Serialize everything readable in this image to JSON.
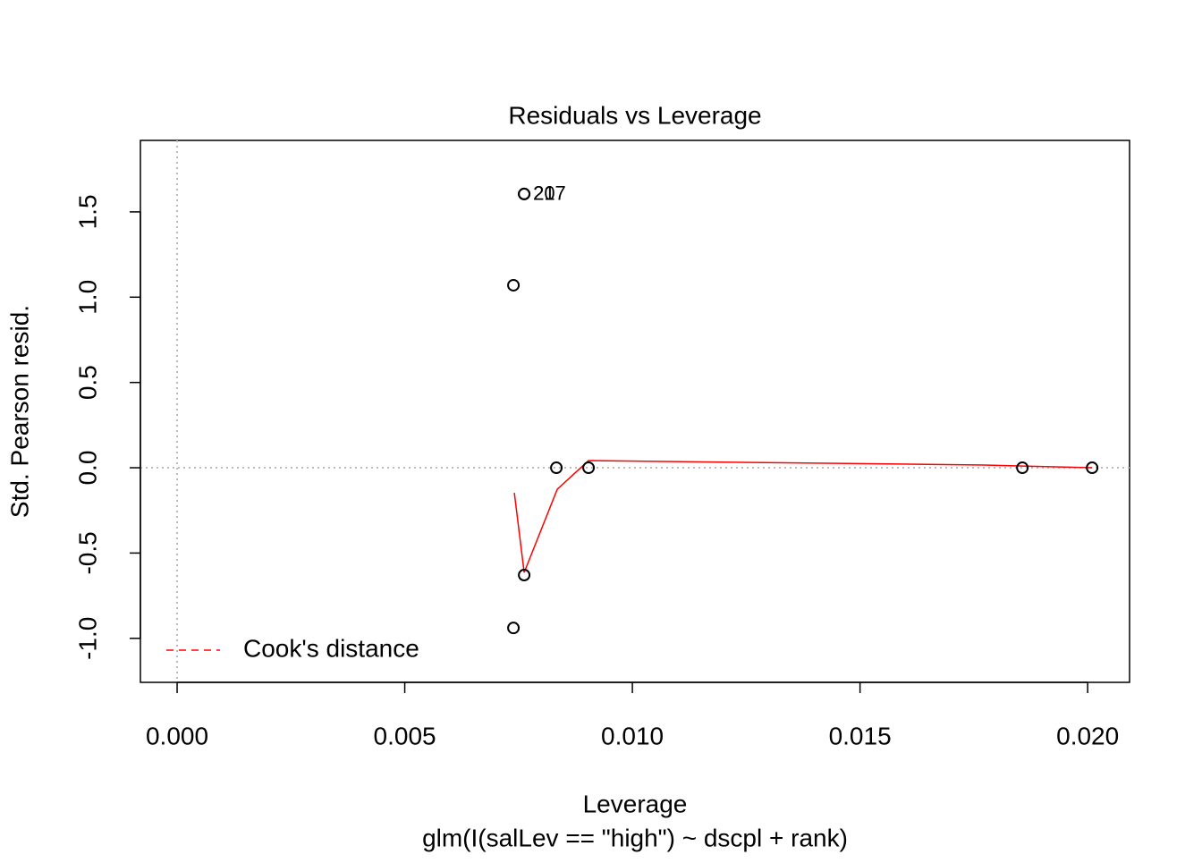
{
  "chart_data": {
    "type": "scatter",
    "title": "Residuals vs Leverage",
    "x_label": "Leverage",
    "subtitle": "glm(I(salLev == \"high\") ~ dscpl + rank)",
    "y_label": "Std. Pearson resid.",
    "x": [
      0.007623,
      0.007623,
      0.007387,
      0.00833,
      0.009037,
      0.007623,
      0.007387,
      0.018566,
      0.020098
    ],
    "y": [
      1.605,
      1.605,
      1.07,
      0,
      0,
      -0.629,
      -0.939,
      0,
      0
    ],
    "point_labels": [
      "207",
      "21",
      null,
      null,
      null,
      null,
      null,
      null,
      null
    ],
    "smooth": {
      "color": "#ff0000",
      "x": [
        0.007407,
        0.007623,
        0.00835,
        0.009037,
        0.01772,
        0.0201
      ],
      "y": [
        -0.147,
        -0.614,
        -0.126,
        0.042,
        0.016,
        0
      ]
    },
    "legend": {
      "label": "Cook's distance",
      "color": "#ff0000",
      "position": "bottomleft"
    },
    "hline": 0,
    "vline": 0,
    "xlim": [
      -0.000806,
      0.02092
    ],
    "ylim": [
      -1.258,
      1.919
    ],
    "xticks": [
      {
        "value": 0,
        "label": "0.000"
      },
      0.005,
      {
        "value": 0.01,
        "label": "0.010"
      },
      0.015,
      {
        "value": 0.02,
        "label": "0.020"
      }
    ],
    "yticks": [
      {
        "value": -1,
        "label": "-1.0"
      },
      -0.5,
      {
        "value": 0,
        "label": "0.0"
      },
      0.5,
      {
        "value": 1,
        "label": "1.0"
      },
      1.5
    ]
  }
}
